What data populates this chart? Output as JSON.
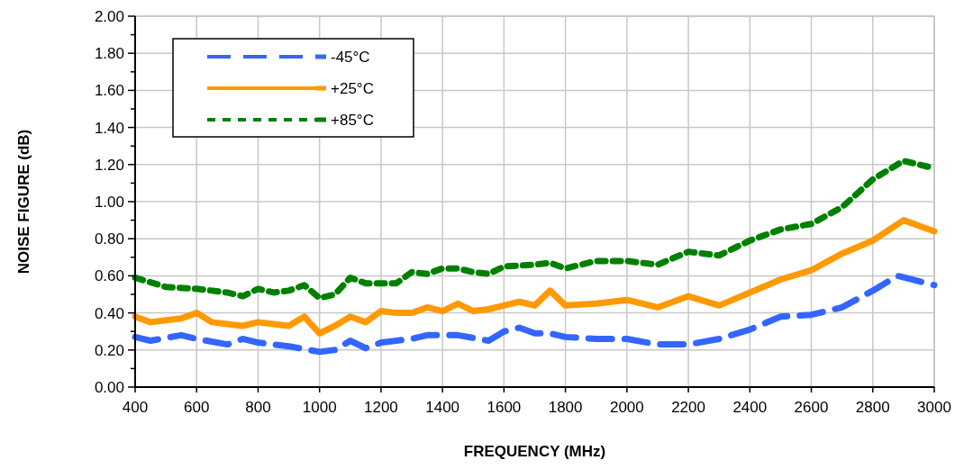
{
  "chart_data": {
    "type": "line",
    "xlabel": "FREQUENCY (MHz)",
    "ylabel": "NOISE FIGURE (dB)",
    "xlim": [
      400,
      3000
    ],
    "xticks": [
      400,
      600,
      800,
      1000,
      1200,
      1400,
      1600,
      1800,
      2000,
      2200,
      2400,
      2600,
      2800,
      3000
    ],
    "ylim": [
      0,
      2
    ],
    "yticks": [
      {
        "value": 0,
        "label": "0.00"
      },
      {
        "value": 0.1,
        "label": null
      },
      {
        "value": 0.2,
        "label": "0.20"
      },
      {
        "value": 0.3,
        "label": null
      },
      {
        "value": 0.4,
        "label": "0.40"
      },
      {
        "value": 0.5,
        "label": null
      },
      {
        "value": 0.6,
        "label": "0.60"
      },
      {
        "value": 0.7,
        "label": null
      },
      {
        "value": 0.8,
        "label": "0.80"
      },
      {
        "value": 0.9,
        "label": null
      },
      {
        "value": 1,
        "label": "1.00"
      },
      {
        "value": 1.1,
        "label": null
      },
      {
        "value": 1.2,
        "label": "1.20"
      },
      {
        "value": 1.3,
        "label": null
      },
      {
        "value": 1.4,
        "label": "1.40"
      },
      {
        "value": 1.5,
        "label": null
      },
      {
        "value": 1.6,
        "label": "1.60"
      },
      {
        "value": 1.7,
        "label": null
      },
      {
        "value": 1.8,
        "label": "1.80"
      },
      {
        "value": 1.9,
        "label": null
      },
      {
        "value": 2,
        "label": "2.00"
      }
    ],
    "grid": true,
    "legend": "top left",
    "marker": "none",
    "series": [
      {
        "name": "-45°C",
        "color": "#3366ff",
        "line_style": "dashed",
        "x": [
          400,
          450,
          550,
          600,
          700,
          750,
          800,
          900,
          1000,
          1050,
          1100,
          1150,
          1200,
          1250,
          1300,
          1350,
          1450,
          1550,
          1600,
          1650,
          1700,
          1750,
          1800,
          1900,
          2000,
          2100,
          2200,
          2300,
          2400,
          2500,
          2600,
          2700,
          2800,
          2880,
          3000
        ],
        "values": [
          0.27,
          0.25,
          0.28,
          0.26,
          0.23,
          0.26,
          0.24,
          0.22,
          0.19,
          0.2,
          0.25,
          0.21,
          0.24,
          0.25,
          0.26,
          0.28,
          0.28,
          0.25,
          0.3,
          0.32,
          0.29,
          0.29,
          0.27,
          0.26,
          0.26,
          0.23,
          0.23,
          0.26,
          0.31,
          0.38,
          0.39,
          0.43,
          0.52,
          0.6,
          0.55
        ]
      },
      {
        "name": "+25°C",
        "color": "#ff9900",
        "line_style": "solid",
        "x": [
          400,
          450,
          500,
          550,
          600,
          650,
          700,
          750,
          800,
          850,
          900,
          950,
          1000,
          1050,
          1100,
          1150,
          1200,
          1250,
          1300,
          1350,
          1400,
          1450,
          1500,
          1550,
          1600,
          1650,
          1700,
          1750,
          1800,
          1900,
          2000,
          2100,
          2200,
          2300,
          2400,
          2500,
          2600,
          2700,
          2800,
          2900,
          3000
        ],
        "values": [
          0.38,
          0.35,
          0.36,
          0.37,
          0.4,
          0.35,
          0.34,
          0.33,
          0.35,
          0.34,
          0.33,
          0.38,
          0.29,
          0.33,
          0.38,
          0.35,
          0.41,
          0.4,
          0.4,
          0.43,
          0.41,
          0.45,
          0.41,
          0.42,
          0.44,
          0.46,
          0.44,
          0.52,
          0.44,
          0.45,
          0.47,
          0.43,
          0.49,
          0.44,
          0.51,
          0.58,
          0.63,
          0.72,
          0.79,
          0.9,
          0.84
        ]
      },
      {
        "name": "+85°C",
        "color": "#008000",
        "line_style": "dotted",
        "x": [
          400,
          500,
          600,
          700,
          750,
          800,
          850,
          900,
          950,
          1000,
          1050,
          1100,
          1150,
          1200,
          1250,
          1300,
          1350,
          1400,
          1450,
          1500,
          1550,
          1600,
          1700,
          1750,
          1800,
          1900,
          2000,
          2100,
          2200,
          2300,
          2400,
          2500,
          2600,
          2700,
          2800,
          2900,
          3000
        ],
        "values": [
          0.59,
          0.54,
          0.53,
          0.51,
          0.49,
          0.53,
          0.51,
          0.52,
          0.55,
          0.48,
          0.5,
          0.59,
          0.56,
          0.56,
          0.56,
          0.62,
          0.61,
          0.64,
          0.64,
          0.62,
          0.61,
          0.65,
          0.66,
          0.67,
          0.64,
          0.68,
          0.68,
          0.66,
          0.73,
          0.71,
          0.79,
          0.85,
          0.88,
          0.97,
          1.12,
          1.22,
          1.18
        ]
      }
    ]
  }
}
